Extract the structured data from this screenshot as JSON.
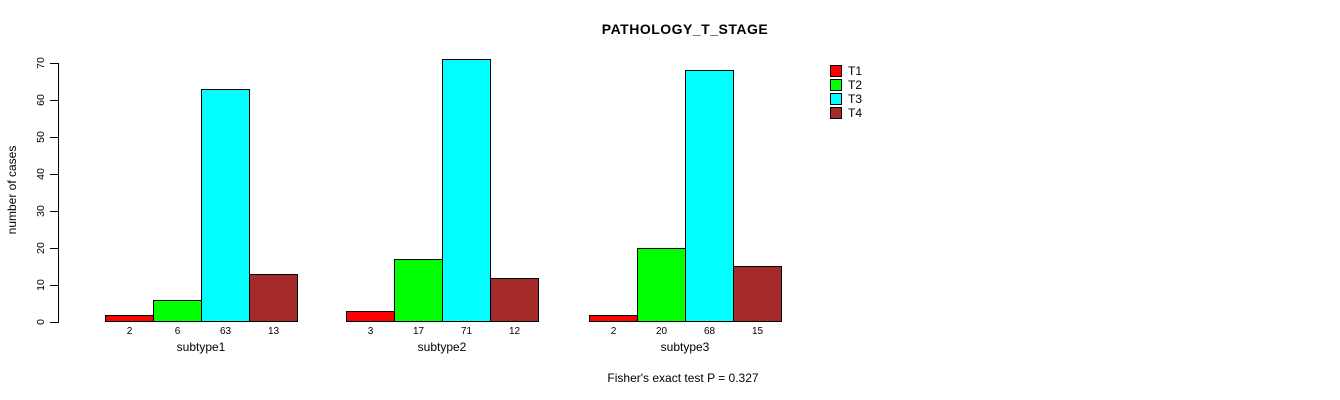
{
  "chart_data": {
    "type": "bar",
    "title": "PATHOLOGY_T_STAGE",
    "ylabel": "number of cases",
    "xlabel": "",
    "ylim": [
      0,
      70
    ],
    "yticks": [
      0,
      10,
      20,
      30,
      40,
      50,
      60,
      70
    ],
    "grid": false,
    "legend_position": "top-right",
    "categories": [
      "subtype1",
      "subtype2",
      "subtype3"
    ],
    "series": [
      {
        "name": "T1",
        "color": "#ff0000",
        "values": [
          2,
          3,
          2
        ]
      },
      {
        "name": "T2",
        "color": "#00ff00",
        "values": [
          6,
          17,
          20
        ]
      },
      {
        "name": "T3",
        "color": "#00ffff",
        "values": [
          63,
          71,
          68
        ]
      },
      {
        "name": "T4",
        "color": "#a52a2a",
        "values": [
          13,
          12,
          15
        ]
      }
    ],
    "bar_value_labels": [
      [
        2,
        6,
        63,
        13
      ],
      [
        3,
        17,
        71,
        12
      ],
      [
        2,
        20,
        68,
        15
      ]
    ],
    "footnote": "Fisher's exact test P = 0.327",
    "colors": {
      "background": "#ffffff",
      "axis": "#000000",
      "text": "#000000"
    }
  }
}
